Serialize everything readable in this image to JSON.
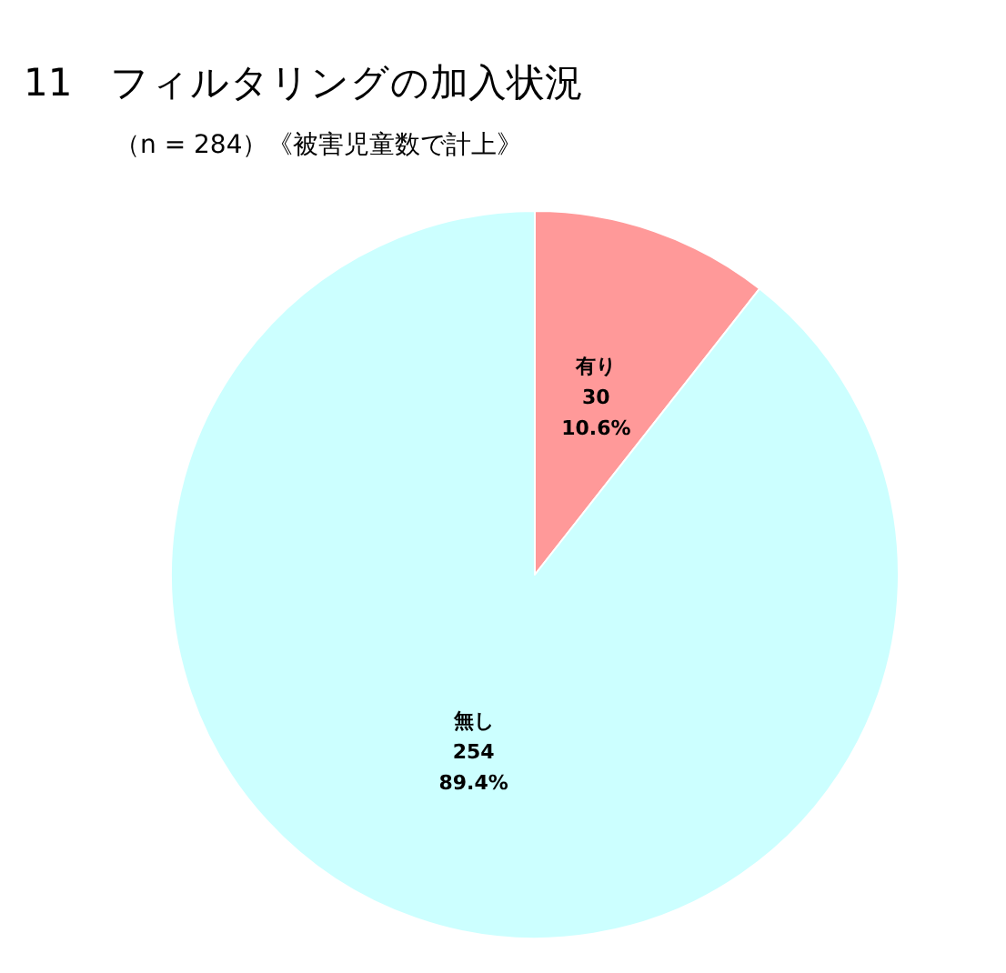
{
  "chart_data": {
    "type": "pie",
    "title": "11　フィルタリングの加入状況",
    "subtitle": "（n = 284）《被害児童数で計上》",
    "categories": [
      "有り",
      "無し"
    ],
    "values": [
      10.6,
      89.4
    ],
    "colors": [
      "#ff9999",
      "#ccffff"
    ],
    "value_labels": [
      "30\n10.6%",
      "254\n89.4%"
    ],
    "legend": false
  }
}
